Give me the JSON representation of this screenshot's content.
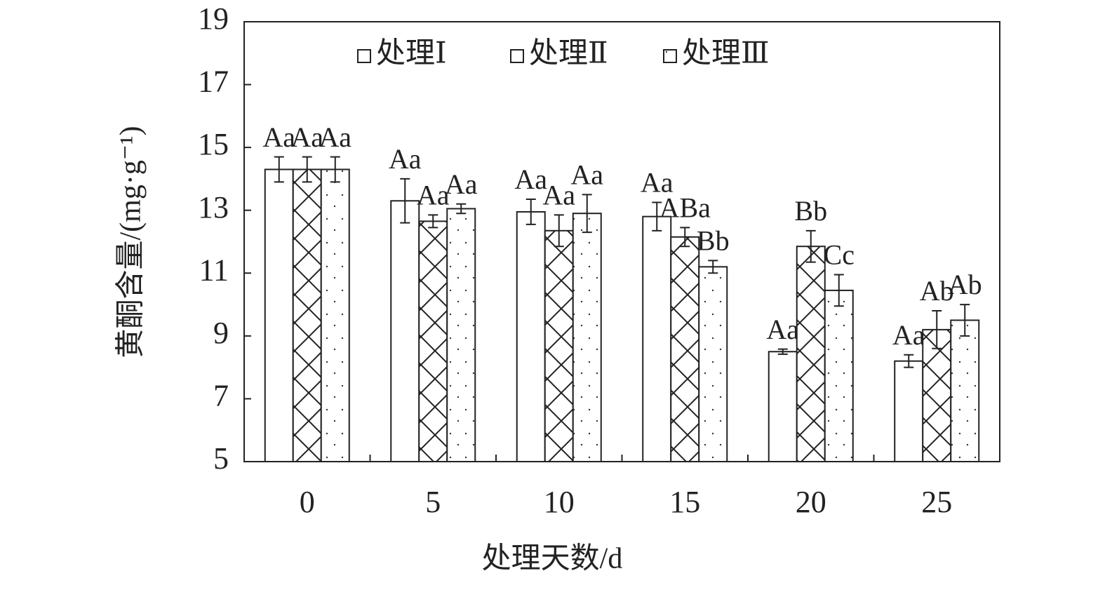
{
  "chart_data": {
    "type": "bar",
    "xlabel": "处理天数/d",
    "ylabel": "黄酮含量/(mg·g⁻¹)",
    "categories": [
      "0",
      "5",
      "10",
      "15",
      "20",
      "25"
    ],
    "ylim": [
      5,
      19
    ],
    "yticks": [
      5,
      7,
      9,
      11,
      13,
      15,
      17,
      19
    ],
    "legend": "top",
    "series": [
      {
        "name": "处理Ⅰ",
        "color": "#222222",
        "pattern": "none",
        "values": [
          14.3,
          13.3,
          12.95,
          12.8,
          8.5,
          8.2
        ],
        "errors": [
          0.4,
          0.7,
          0.4,
          0.45,
          0.08,
          0.2
        ],
        "letters": [
          "Aa",
          "Aa",
          "Aa",
          "Aa",
          "Aa",
          "Aa"
        ]
      },
      {
        "name": "处理Ⅱ",
        "color": "#222222",
        "pattern": "crosshatch",
        "values": [
          14.3,
          12.65,
          12.35,
          12.15,
          11.85,
          9.2
        ],
        "errors": [
          0.4,
          0.2,
          0.5,
          0.3,
          0.5,
          0.6
        ],
        "letters": [
          "Aa",
          "Aa",
          "Aa",
          "ABa",
          "Bb",
          "Ab"
        ]
      },
      {
        "name": "处理Ⅲ",
        "color": "#222222",
        "pattern": "dots",
        "values": [
          14.3,
          13.05,
          12.9,
          11.2,
          10.45,
          9.5
        ],
        "errors": [
          0.4,
          0.15,
          0.6,
          0.2,
          0.5,
          0.5
        ],
        "letters": [
          "Aa",
          "Aa",
          "Aa",
          "Bb",
          "Cc",
          "Ab"
        ]
      }
    ]
  }
}
